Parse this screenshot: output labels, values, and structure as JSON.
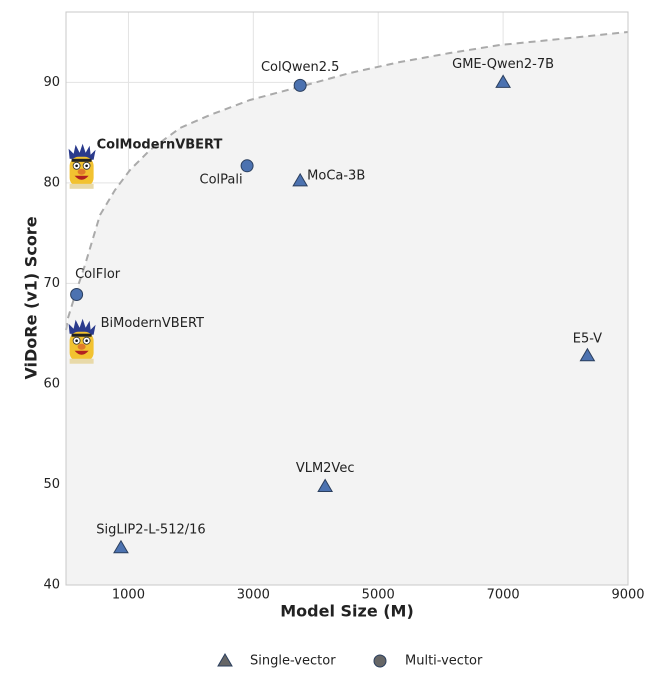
{
  "chart_data": {
    "type": "scatter",
    "xlabel": "Model Size (M)",
    "ylabel": "ViDoRe (v1) Score",
    "xlim": [
      0,
      9000
    ],
    "ylim": [
      40,
      97
    ],
    "xticks": [
      1000,
      3000,
      5000,
      7000,
      9000
    ],
    "yticks": [
      40,
      50,
      60,
      70,
      80,
      90
    ],
    "grid": true,
    "legend": "bottom",
    "series": [
      {
        "name": "Single-vector",
        "marker": "triangle",
        "color": "#4c72b0",
        "labels": [
          "GME-Qwen2-7B",
          "MoCa-3B",
          "E5-V",
          "VLM2Vec",
          "SigLIP2-L-512/16",
          "BiModernVBERT"
        ],
        "x": [
          7000,
          3750,
          8350,
          4150,
          880,
          250
        ],
        "values": [
          90.0,
          80.2,
          62.8,
          49.8,
          43.7,
          64.2
        ],
        "icons": [
          false,
          false,
          false,
          false,
          false,
          true
        ],
        "bold_labels": [
          false,
          false,
          false,
          false,
          false,
          false
        ]
      },
      {
        "name": "Multi-vector",
        "marker": "circle",
        "color": "#4c72b0",
        "labels": [
          "ColQwen2.5",
          "ColPali",
          "ColFlor",
          "ColModernVBERT"
        ],
        "x": [
          3750,
          2900,
          170,
          250
        ],
        "values": [
          89.7,
          81.7,
          68.9,
          81.6
        ],
        "icons": [
          false,
          false,
          false,
          true
        ],
        "bold_labels": [
          false,
          false,
          false,
          true
        ]
      }
    ]
  }
}
